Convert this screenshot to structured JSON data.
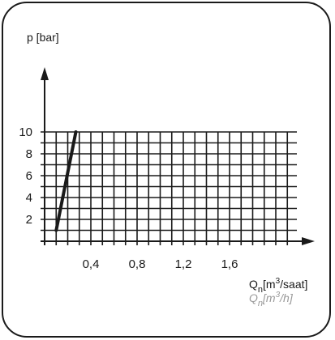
{
  "chart_data": {
    "type": "line",
    "ylabel": "p [bar]",
    "xlabel": {
      "base": "Q",
      "sub": "n",
      "unit_before": "[m",
      "sup": "3",
      "unit_after": "/saat]"
    },
    "xlabel_alt": {
      "base": "Q",
      "sub": "n",
      "unit_before": "[m",
      "sup": "3",
      "unit_after": "/h]"
    },
    "x_ticks": [
      {
        "value": 0.4,
        "label": "0,4"
      },
      {
        "value": 0.8,
        "label": "0,8"
      },
      {
        "value": 1.2,
        "label": "1,2"
      },
      {
        "value": 1.6,
        "label": "1,6"
      }
    ],
    "y_ticks": [
      {
        "value": 2,
        "label": "2"
      },
      {
        "value": 4,
        "label": "4"
      },
      {
        "value": 6,
        "label": "6"
      },
      {
        "value": 8,
        "label": "8"
      },
      {
        "value": 10,
        "label": "10"
      }
    ],
    "xlim": [
      0,
      2.2
    ],
    "ylim": [
      0,
      10
    ],
    "grid": true,
    "series": [
      {
        "points": [
          {
            "x": 0.1,
            "y": 1
          },
          {
            "x": 0.27,
            "y": 10
          }
        ]
      }
    ]
  }
}
